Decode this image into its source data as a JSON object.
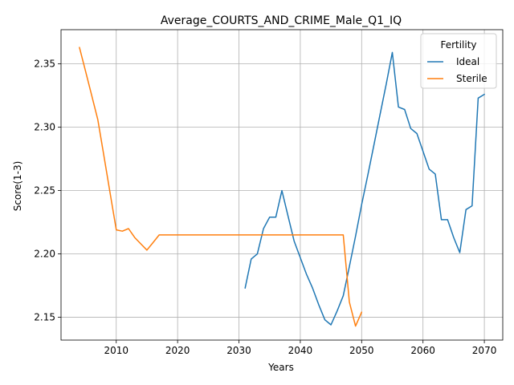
{
  "chart_data": {
    "type": "line",
    "title": "Average_COURTS_AND_CRIME_Male_Q1_IQ",
    "xlabel": "Years",
    "ylabel": "Score(1-3)",
    "xlim": [
      2001,
      2073
    ],
    "ylim": [
      2.132,
      2.377
    ],
    "xticks": [
      2010,
      2020,
      2030,
      2040,
      2050,
      2060,
      2070
    ],
    "yticks": [
      2.15,
      2.2,
      2.25,
      2.3,
      2.35
    ],
    "ytick_labels": [
      "2.15",
      "2.20",
      "2.25",
      "2.30",
      "2.35"
    ],
    "grid": true,
    "legend": {
      "title": "Fertility",
      "position": "upper right"
    },
    "series": [
      {
        "name": "Ideal",
        "color": "#1f77b4",
        "x": [
          2031,
          2032,
          2033,
          2034,
          2035,
          2036,
          2037,
          2038,
          2039,
          2040,
          2041,
          2042,
          2043,
          2044,
          2045,
          2046,
          2047,
          2048,
          2049,
          2050,
          2051,
          2052,
          2053,
          2054,
          2055,
          2056,
          2057,
          2058,
          2059,
          2060,
          2061,
          2062,
          2063,
          2064,
          2065,
          2066,
          2067,
          2068,
          2069,
          2070
        ],
        "y": [
          2.173,
          2.196,
          2.2,
          2.22,
          2.229,
          2.229,
          2.25,
          2.23,
          2.21,
          2.197,
          2.184,
          2.173,
          2.16,
          2.148,
          2.144,
          2.155,
          2.167,
          2.19,
          2.214,
          2.239,
          2.262,
          2.286,
          2.31,
          2.334,
          2.359,
          2.316,
          2.314,
          2.299,
          2.295,
          2.281,
          2.267,
          2.263,
          2.227,
          2.227,
          2.213,
          2.201,
          2.235,
          2.238,
          2.323,
          2.326
        ]
      },
      {
        "name": "Sterile",
        "color": "#ff7f0e",
        "x": [
          2004,
          2005,
          2006,
          2007,
          2008,
          2009,
          2010,
          2011,
          2012,
          2013,
          2014,
          2015,
          2016,
          2017,
          2018,
          2020,
          2025,
          2030,
          2035,
          2040,
          2045,
          2046,
          2047,
          2048,
          2049,
          2050
        ],
        "y": [
          2.363,
          2.344,
          2.325,
          2.306,
          2.277,
          2.248,
          2.219,
          2.218,
          2.22,
          2.213,
          2.208,
          2.203,
          2.209,
          2.215,
          2.215,
          2.215,
          2.215,
          2.215,
          2.215,
          2.215,
          2.215,
          2.215,
          2.215,
          2.162,
          2.143,
          2.154
        ]
      }
    ]
  }
}
